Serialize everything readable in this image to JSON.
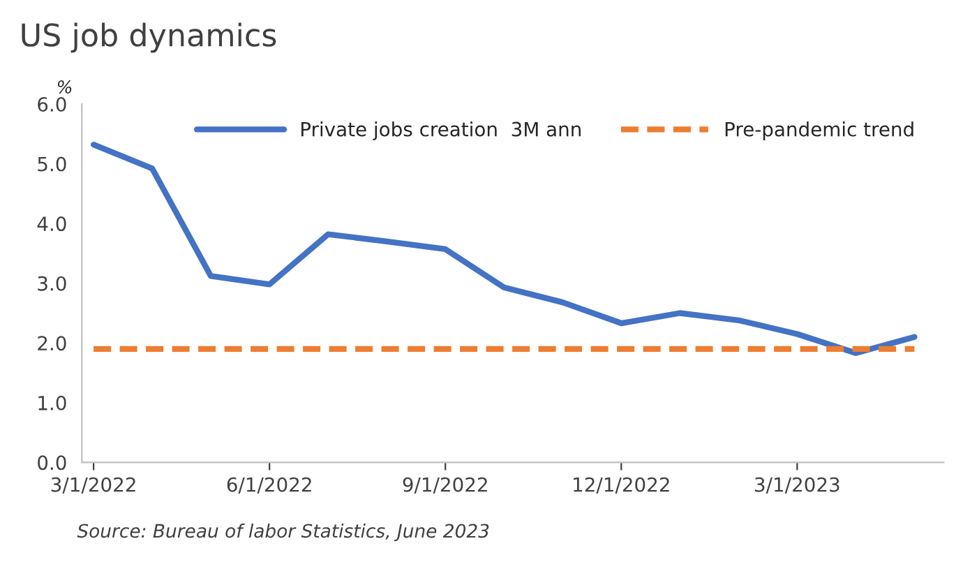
{
  "chart_data": {
    "type": "line",
    "title": "US job dynamics",
    "ylabel": "%",
    "categories": [
      "3/1/2022",
      null,
      null,
      "6/1/2022",
      null,
      null,
      "9/1/2022",
      null,
      null,
      "12/1/2022",
      null,
      null,
      "3/1/2023",
      null,
      null
    ],
    "series": [
      {
        "name": "Private jobs creation  3M ann",
        "color": "#4472c4",
        "line_style": "solid",
        "values": [
          5.32,
          4.92,
          3.12,
          2.98,
          3.82,
          3.7,
          3.57,
          2.93,
          2.68,
          2.33,
          2.5,
          2.38,
          2.15,
          1.83,
          2.1
        ]
      },
      {
        "name": "Pre-pandemic trend",
        "color": "#ed7d31",
        "line_style": "dashed",
        "values": [
          1.9,
          1.9,
          1.9,
          1.9,
          1.9,
          1.9,
          1.9,
          1.9,
          1.9,
          1.9,
          1.9,
          1.9,
          1.9,
          1.9,
          1.9
        ]
      }
    ],
    "ylim": [
      0,
      6
    ],
    "yticks": [
      {
        "value": 0,
        "label": "0.0"
      },
      {
        "value": 1,
        "label": "1.0"
      },
      {
        "value": 2,
        "label": "2.0"
      },
      {
        "value": 3,
        "label": "3.0"
      },
      {
        "value": 4,
        "label": "4.0"
      },
      {
        "value": 5,
        "label": "5.0"
      },
      {
        "value": 6,
        "label": "6.0"
      }
    ],
    "grid": false,
    "legend": "top",
    "marker": "none",
    "annotations": [
      "Source: Bureau of labor Statistics, June 2023"
    ]
  }
}
